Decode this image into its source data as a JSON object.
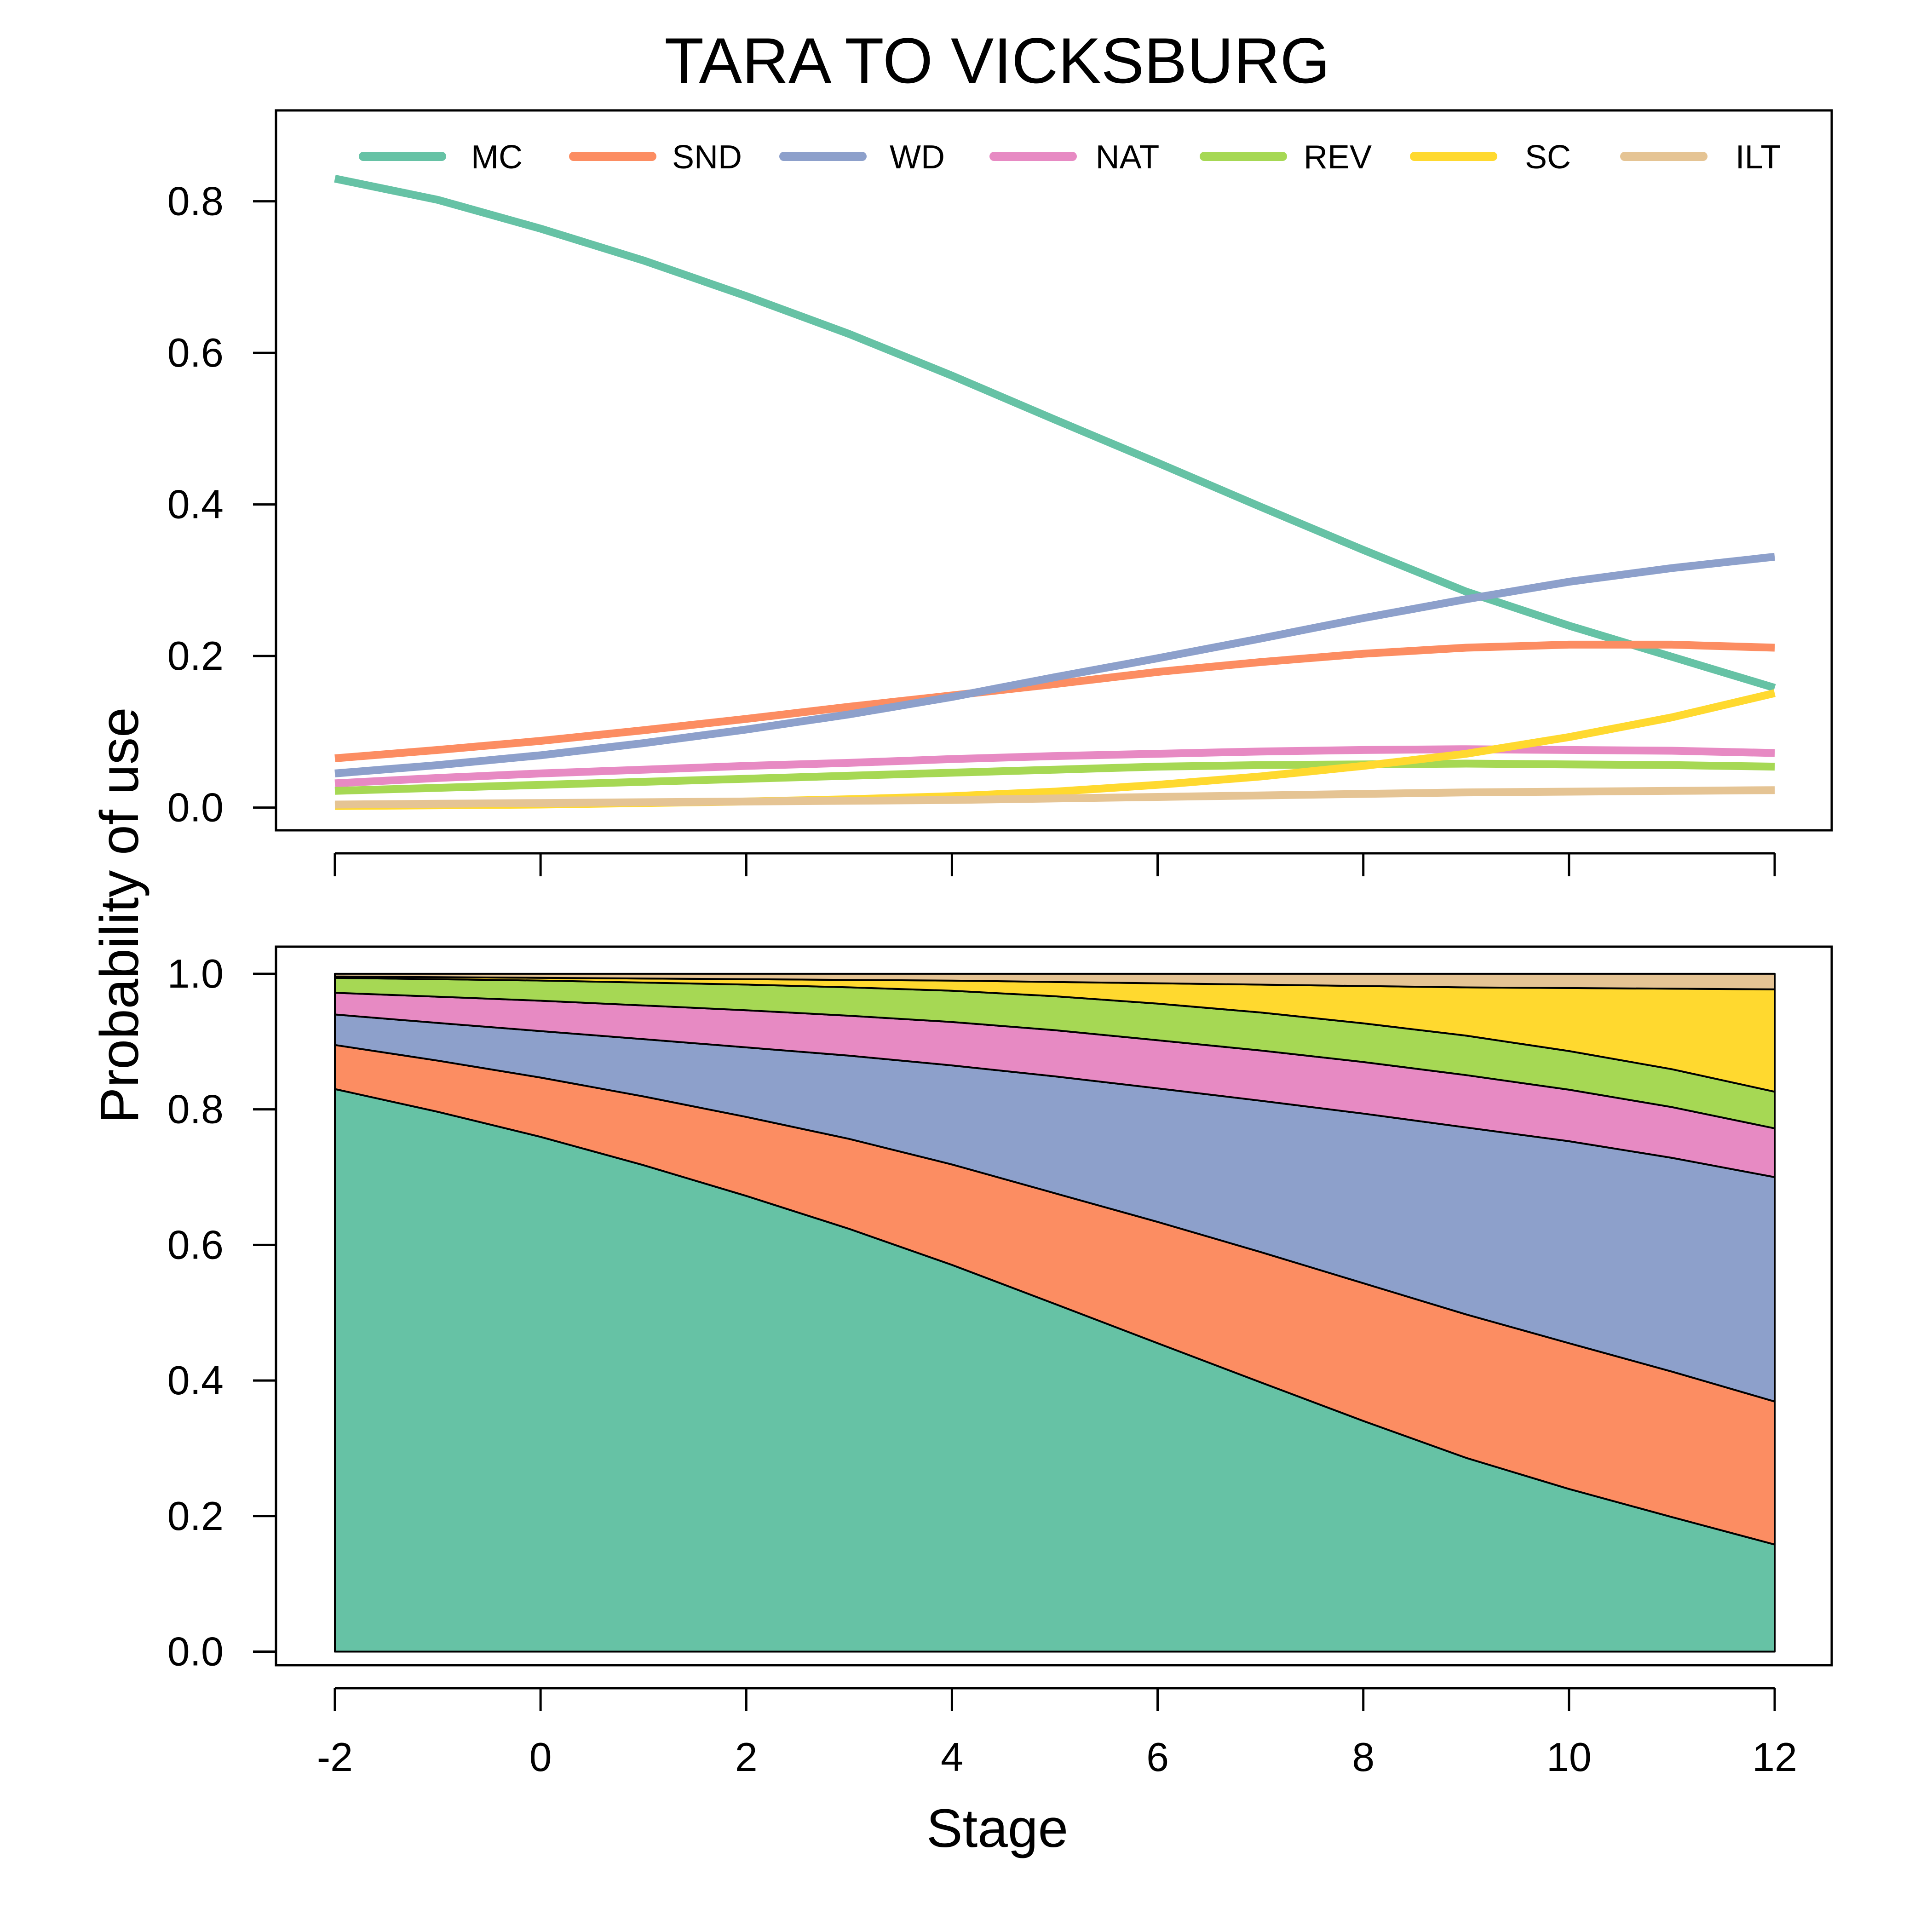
{
  "chart_data": {
    "title": "TARA TO VICKSBURG",
    "xlabel": "Stage",
    "ylabel": "Probability of use",
    "x": [
      -2,
      -1,
      0,
      1,
      2,
      3,
      4,
      5,
      6,
      7,
      8,
      9,
      10,
      11,
      12
    ],
    "x_ticks": [
      "-2",
      "0",
      "2",
      "4",
      "6",
      "8",
      "10",
      "12"
    ],
    "legend_position": "top",
    "panels": [
      {
        "type": "line",
        "ylim": [
          -0.03,
          0.92
        ],
        "y_ticks": [
          "0.0",
          "0.2",
          "0.4",
          "0.6",
          "0.8"
        ],
        "grid": false
      },
      {
        "type": "area",
        "stacked": true,
        "ylim": [
          -0.02,
          1.04
        ],
        "y_ticks": [
          "0.0",
          "0.2",
          "0.4",
          "0.6",
          "0.8",
          "1.0"
        ],
        "grid": false
      }
    ],
    "series": [
      {
        "name": "MC",
        "color": "#66c2a5",
        "values": [
          0.83,
          0.802,
          0.764,
          0.722,
          0.675,
          0.625,
          0.57,
          0.512,
          0.455,
          0.397,
          0.34,
          0.285,
          0.24,
          0.199,
          0.158
        ]
      },
      {
        "name": "SND",
        "color": "#fc8d62",
        "values": [
          0.065,
          0.076,
          0.088,
          0.102,
          0.117,
          0.133,
          0.148,
          0.163,
          0.179,
          0.192,
          0.203,
          0.211,
          0.215,
          0.215,
          0.211
        ]
      },
      {
        "name": "WD",
        "color": "#8da0cb",
        "values": [
          0.045,
          0.056,
          0.069,
          0.085,
          0.103,
          0.123,
          0.146,
          0.172,
          0.197,
          0.223,
          0.25,
          0.275,
          0.298,
          0.316,
          0.331
        ]
      },
      {
        "name": "NAT",
        "color": "#e78ac3",
        "values": [
          0.032,
          0.039,
          0.045,
          0.05,
          0.055,
          0.059,
          0.064,
          0.068,
          0.071,
          0.074,
          0.076,
          0.077,
          0.076,
          0.075,
          0.072
        ]
      },
      {
        "name": "REV",
        "color": "#a6d854",
        "values": [
          0.022,
          0.026,
          0.03,
          0.034,
          0.038,
          0.042,
          0.046,
          0.05,
          0.054,
          0.056,
          0.057,
          0.058,
          0.057,
          0.056,
          0.054
        ]
      },
      {
        "name": "SC",
        "color": "#ffd92f",
        "values": [
          0.002,
          0.003,
          0.004,
          0.006,
          0.008,
          0.011,
          0.015,
          0.021,
          0.03,
          0.041,
          0.055,
          0.071,
          0.093,
          0.119,
          0.151
        ]
      },
      {
        "name": "ILT",
        "color": "#e5c494",
        "values": [
          0.004,
          0.005,
          0.006,
          0.007,
          0.008,
          0.009,
          0.01,
          0.012,
          0.014,
          0.016,
          0.018,
          0.02,
          0.021,
          0.022,
          0.023
        ]
      }
    ]
  }
}
